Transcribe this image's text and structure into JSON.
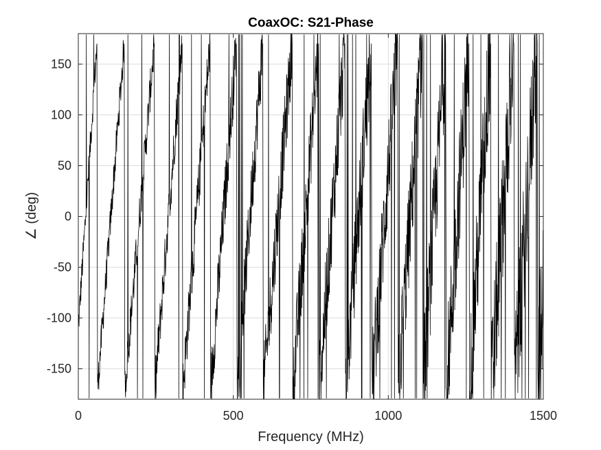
{
  "chart_data": {
    "type": "line",
    "title": "CoaxOC: S21-Phase",
    "xlabel": "Frequency (MHz)",
    "ylabel": "∠ (deg)",
    "xlim": [
      0,
      1500
    ],
    "ylim": [
      -180,
      180
    ],
    "xticks": [
      0,
      500,
      1000,
      1500
    ],
    "yticks": [
      -150,
      -100,
      -50,
      0,
      50,
      100,
      150
    ],
    "grid": true,
    "series": [
      {
        "color": "#000000",
        "x": [
          0,
          60,
          62,
          148,
          150,
          245,
          247,
          335,
          337,
          425,
          427,
          510,
          512,
          595,
          597,
          690,
          692,
          775,
          777,
          860,
          862,
          945,
          947,
          1030,
          1032,
          1110,
          1112,
          1185,
          1187,
          1260,
          1262,
          1330,
          1332,
          1405,
          1407,
          1480,
          1482,
          1500
        ],
        "y": [
          -110,
          170,
          -170,
          170,
          -170,
          170,
          -170,
          170,
          -170,
          170,
          -170,
          170,
          -170,
          170,
          -170,
          170,
          -170,
          170,
          -170,
          170,
          -170,
          170,
          -170,
          170,
          -170,
          170,
          -170,
          170,
          -170,
          170,
          -170,
          170,
          -170,
          170,
          -170,
          170,
          -170,
          -60
        ]
      }
    ]
  }
}
